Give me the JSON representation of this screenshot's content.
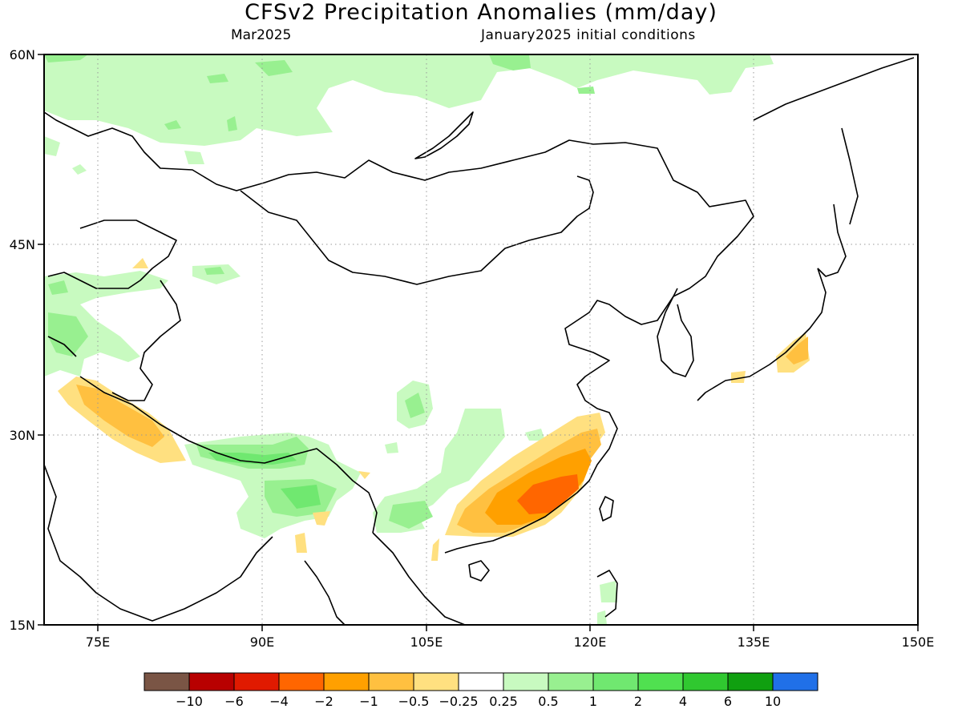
{
  "title": "CFSv2 Precipitation Anomalies (mm/day)",
  "subtitle_left": "Mar2025",
  "subtitle_right": "January2025 initial conditions",
  "axes": {
    "lon_ticks": [
      "75E",
      "90E",
      "105E",
      "120E",
      "135E",
      "150E"
    ],
    "lat_ticks": [
      "60N",
      "45N",
      "30N",
      "15N"
    ],
    "lon_range": [
      70,
      150
    ],
    "lat_range": [
      15,
      60
    ],
    "grid": "dotted"
  },
  "colorbar": {
    "colors": [
      "#7a5545",
      "#b80000",
      "#e01a00",
      "#ff6600",
      "#ffa000",
      "#ffc040",
      "#ffe080",
      "#ffffff",
      "#c8fac0",
      "#98f090",
      "#70e870",
      "#50e050",
      "#30c830",
      "#10a010",
      "#2070e8"
    ],
    "labels": [
      "−10",
      "−6",
      "−4",
      "−2",
      "−1",
      "−0.5",
      "−0.25",
      "0.25",
      "0.5",
      "1",
      "2",
      "4",
      "6",
      "10"
    ]
  },
  "anomaly_regions": [
    {
      "level": "+0.5",
      "color": "#c8fac0"
    },
    {
      "level": "+1",
      "color": "#98f090"
    },
    {
      "level": "+2",
      "color": "#70e870"
    },
    {
      "level": "-0.5",
      "color": "#ffe080"
    },
    {
      "level": "-1",
      "color": "#ffc040"
    },
    {
      "level": "-2",
      "color": "#ffa000"
    },
    {
      "level": "-4",
      "color": "#ff6600"
    }
  ]
}
